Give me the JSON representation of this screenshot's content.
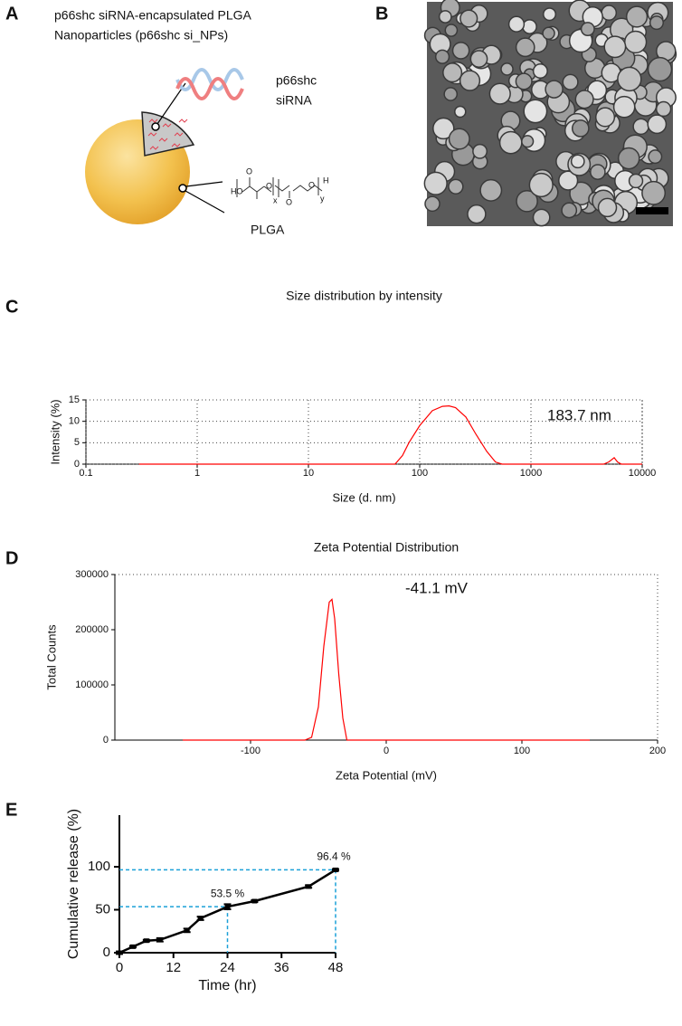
{
  "panels": {
    "a": {
      "label": "A",
      "title_lines": [
        "p66shc siRNA-encapsulated PLGA",
        "Nanoparticles (p66shc si_NPs)"
      ],
      "sirna_label": [
        "p66shc",
        "siRNA"
      ],
      "formula": {
        "left": "HO",
        "right": "H",
        "oxygen": "O",
        "x": "x",
        "y": "y"
      },
      "plga_label": "PLGA"
    },
    "b": {
      "label": "B"
    }
  },
  "chart_data": [
    {
      "panel": "C",
      "type": "line",
      "title": "Size distribution by intensity",
      "x_label": "Size (d. nm)",
      "y_label": "Intensity (%)",
      "annotation": "183.7 nm",
      "xscale": "log",
      "xlim": [
        0.1,
        10000
      ],
      "xticks": [
        0.1,
        1,
        10,
        100,
        1000,
        10000
      ],
      "ylim": [
        0,
        15
      ],
      "yticks": [
        0,
        5,
        10,
        15
      ],
      "grid": true,
      "x": [
        0.3,
        60,
        70,
        80,
        100,
        130,
        160,
        183.7,
        210,
        260,
        320,
        400,
        480,
        550,
        4500,
        5000,
        5600,
        6000,
        6500,
        10000
      ],
      "series": [
        {
          "color": "#ff0000",
          "values": [
            0,
            0,
            2,
            5,
            9,
            12.5,
            13.5,
            13.6,
            13.2,
            11,
            7,
            3,
            0.5,
            0,
            0,
            0.5,
            1.5,
            0.5,
            0,
            0
          ]
        }
      ]
    },
    {
      "panel": "D",
      "type": "line",
      "title": "Zeta Potential Distribution",
      "x_label": "Zeta Potential (mV)",
      "y_label": "Total Counts",
      "annotation": "-41.1 mV",
      "xlim": [
        -200,
        200
      ],
      "xticks": [
        -100,
        0,
        100,
        200
      ],
      "ylim": [
        0,
        300000
      ],
      "yticks": [
        0,
        100000,
        200000,
        300000
      ],
      "grid": false,
      "x": [
        -150,
        -60,
        -55,
        -50,
        -46,
        -42,
        -40,
        -38,
        -35,
        -32,
        -29,
        150
      ],
      "series": [
        {
          "color": "#ff0000",
          "values": [
            0,
            0,
            5000,
            60000,
            170000,
            250000,
            255000,
            220000,
            120000,
            40000,
            0,
            0
          ]
        }
      ]
    },
    {
      "panel": "E",
      "type": "line",
      "x_label": "Time (hr)",
      "y_label": "Cumulative release (%)",
      "xlim": [
        0,
        48
      ],
      "xticks": [
        0,
        12,
        24,
        36,
        48
      ],
      "ylim": [
        0,
        160
      ],
      "yticks": [
        0,
        50,
        100
      ],
      "guide_color": "#1aa0d8",
      "x": [
        0,
        3,
        6,
        9,
        15,
        18,
        24,
        30,
        42,
        48
      ],
      "series": [
        {
          "color": "#000000",
          "values": [
            0,
            7,
            14,
            15,
            26,
            40,
            53.5,
            60,
            77,
            96.4
          ],
          "errors": [
            1.5,
            1,
            1,
            2,
            2,
            2,
            3,
            1,
            1.5,
            1
          ],
          "value_labels": [
            null,
            null,
            null,
            null,
            null,
            null,
            "53.5 %",
            null,
            null,
            "96.4 %"
          ]
        }
      ]
    }
  ]
}
